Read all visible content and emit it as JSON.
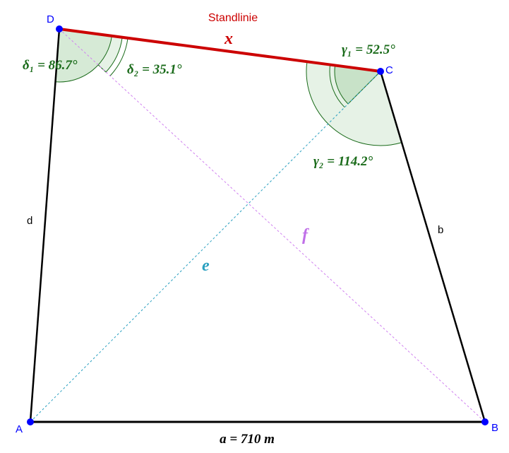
{
  "title": "Standlinie",
  "points": {
    "A": "A",
    "B": "B",
    "C": "C",
    "D": "D"
  },
  "sides": {
    "a": "a = 710 m",
    "b": "b",
    "d": "d",
    "x": "x",
    "e": "e",
    "f": "f"
  },
  "angles": {
    "delta1": "δ₁ = 86.7°",
    "delta2": "δ₂ = 35.1°",
    "gamma1": "γ₁ = 52.5°",
    "gamma2": "γ₂ = 114.2°"
  }
}
